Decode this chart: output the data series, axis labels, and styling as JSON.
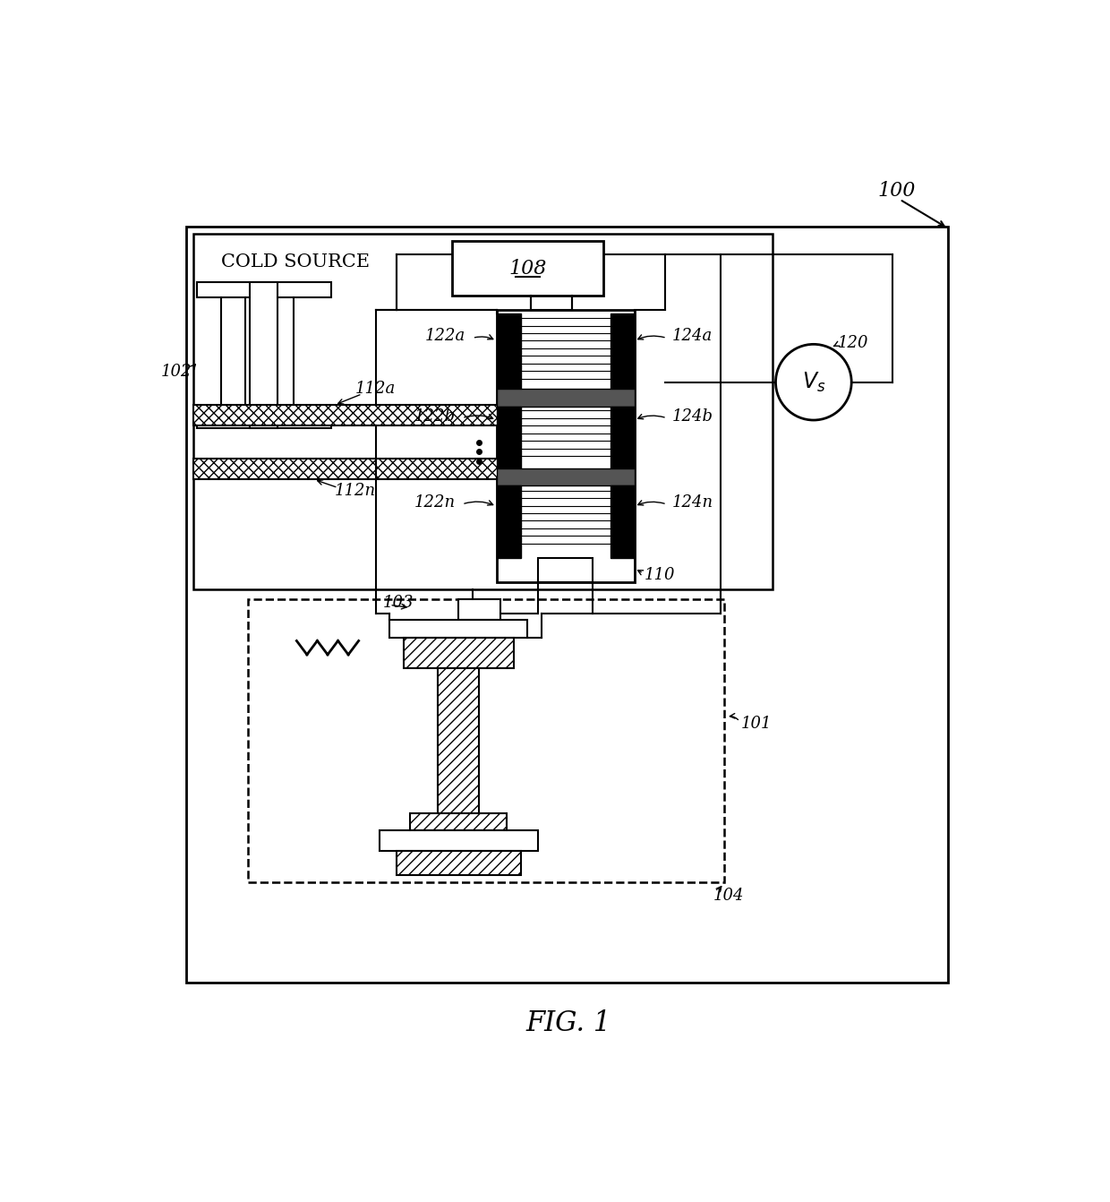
{
  "fig_label": "FIG. 1",
  "ref_100": "100",
  "ref_101": "101",
  "ref_102": "102",
  "ref_103": "103",
  "ref_104": "104",
  "ref_108": "108",
  "ref_110": "110",
  "ref_112a": "112a",
  "ref_112n": "112n",
  "ref_120": "120",
  "ref_122a": "122a",
  "ref_122b": "122b",
  "ref_122n": "122n",
  "ref_124a": "124a",
  "ref_124b": "124b",
  "ref_124n": "124n",
  "cold_source_label": "COLD SOURCE",
  "vs_label": "V_s",
  "bg": "#ffffff",
  "line_color": "#000000"
}
